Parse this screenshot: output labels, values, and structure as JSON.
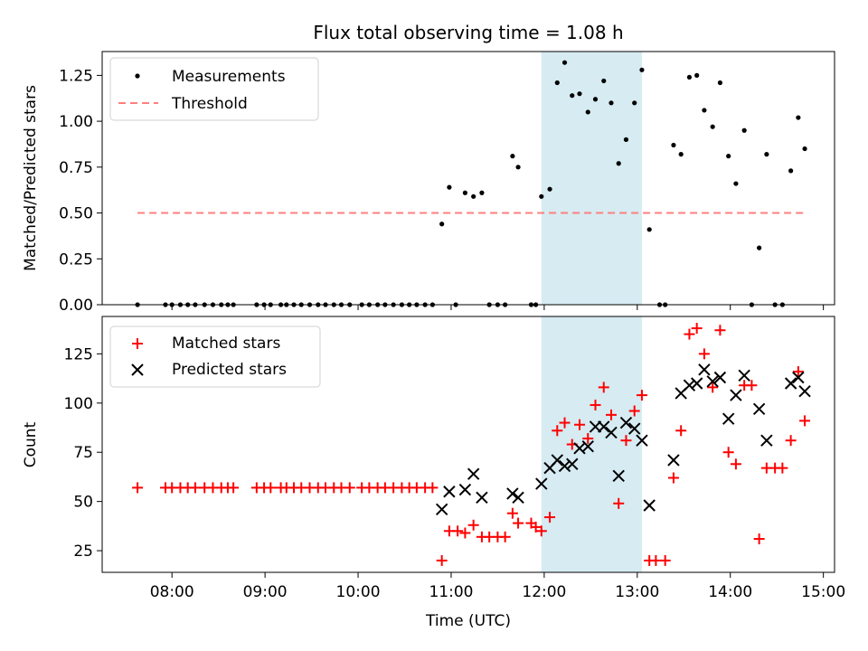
{
  "chart_data": {
    "type": "scatter",
    "title": "Flux total observing time = 1.08 h",
    "xlabel": "Time (UTC)",
    "x_unit": "hours since midnight UTC",
    "xlim": [
      7.25,
      15.12
    ],
    "x_ticks": [
      8,
      9,
      10,
      11,
      12,
      13,
      14,
      15
    ],
    "x_tick_labels": [
      "08:00",
      "09:00",
      "10:00",
      "11:00",
      "12:00",
      "13:00",
      "14:00",
      "15:00"
    ],
    "highlight_span": [
      11.97,
      13.05
    ],
    "highlight_color": "#add8e6",
    "panels": [
      {
        "id": "ratio",
        "ylabel": "Matched/Predicted stars",
        "ylim": [
          0.0,
          1.38
        ],
        "y_ticks": [
          0.0,
          0.25,
          0.5,
          0.75,
          1.0,
          1.25
        ],
        "y_tick_labels": [
          "0.00",
          "0.25",
          "0.50",
          "0.75",
          "1.00",
          "1.25"
        ],
        "legend": [
          "Measurements",
          "Threshold"
        ],
        "threshold": {
          "y": 0.5,
          "x_range": [
            7.63,
            14.8
          ],
          "color": "#ff7f7f"
        },
        "series": [
          {
            "name": "Measurements",
            "marker": "dot",
            "color": "#000000",
            "points": [
              [
                7.63,
                0.0
              ],
              [
                7.93,
                0.0
              ],
              [
                8.0,
                0.0
              ],
              [
                8.09,
                0.0
              ],
              [
                8.17,
                0.0
              ],
              [
                8.25,
                0.0
              ],
              [
                8.35,
                0.0
              ],
              [
                8.44,
                0.0
              ],
              [
                8.53,
                0.0
              ],
              [
                8.6,
                0.0
              ],
              [
                8.66,
                0.0
              ],
              [
                8.91,
                0.0
              ],
              [
                8.99,
                0.0
              ],
              [
                9.06,
                0.0
              ],
              [
                9.17,
                0.0
              ],
              [
                9.23,
                0.0
              ],
              [
                9.31,
                0.0
              ],
              [
                9.39,
                0.0
              ],
              [
                9.48,
                0.0
              ],
              [
                9.57,
                0.0
              ],
              [
                9.65,
                0.0
              ],
              [
                9.74,
                0.0
              ],
              [
                9.82,
                0.0
              ],
              [
                9.91,
                0.0
              ],
              [
                10.04,
                0.0
              ],
              [
                10.12,
                0.0
              ],
              [
                10.21,
                0.0
              ],
              [
                10.29,
                0.0
              ],
              [
                10.38,
                0.0
              ],
              [
                10.47,
                0.0
              ],
              [
                10.55,
                0.0
              ],
              [
                10.63,
                0.0
              ],
              [
                10.72,
                0.0
              ],
              [
                10.8,
                0.0
              ],
              [
                10.9,
                0.44
              ],
              [
                10.98,
                0.64
              ],
              [
                11.05,
                0.0
              ],
              [
                11.15,
                0.61
              ],
              [
                11.24,
                0.59
              ],
              [
                11.33,
                0.61
              ],
              [
                11.41,
                0.0
              ],
              [
                11.5,
                0.0
              ],
              [
                11.58,
                0.0
              ],
              [
                11.66,
                0.81
              ],
              [
                11.72,
                0.75
              ],
              [
                11.86,
                0.0
              ],
              [
                11.91,
                0.0
              ],
              [
                11.97,
                0.59
              ],
              [
                12.06,
                0.63
              ],
              [
                12.14,
                1.21
              ],
              [
                12.22,
                1.32
              ],
              [
                12.3,
                1.14
              ],
              [
                12.38,
                1.15
              ],
              [
                12.47,
                1.05
              ],
              [
                12.55,
                1.12
              ],
              [
                12.64,
                1.22
              ],
              [
                12.72,
                1.1
              ],
              [
                12.8,
                0.77
              ],
              [
                12.88,
                0.9
              ],
              [
                12.97,
                1.1
              ],
              [
                13.05,
                1.28
              ],
              [
                13.13,
                0.41
              ],
              [
                13.24,
                0.0
              ],
              [
                13.3,
                0.0
              ],
              [
                13.39,
                0.87
              ],
              [
                13.47,
                0.82
              ],
              [
                13.56,
                1.24
              ],
              [
                13.64,
                1.25
              ],
              [
                13.72,
                1.06
              ],
              [
                13.81,
                0.97
              ],
              [
                13.89,
                1.21
              ],
              [
                13.98,
                0.81
              ],
              [
                14.06,
                0.66
              ],
              [
                14.15,
                0.95
              ],
              [
                14.23,
                0.0
              ],
              [
                14.31,
                0.31
              ],
              [
                14.39,
                0.82
              ],
              [
                14.48,
                0.0
              ],
              [
                14.56,
                0.0
              ],
              [
                14.65,
                0.73
              ],
              [
                14.73,
                1.02
              ],
              [
                14.8,
                0.85
              ]
            ]
          }
        ]
      },
      {
        "id": "count",
        "ylabel": "Count",
        "ylim": [
          14.0,
          144.0
        ],
        "y_ticks": [
          25,
          50,
          75,
          100,
          125
        ],
        "y_tick_labels": [
          "25",
          "50",
          "75",
          "100",
          "125"
        ],
        "legend": [
          "Matched stars",
          "Predicted stars"
        ],
        "series": [
          {
            "name": "Matched stars",
            "marker": "plus",
            "color": "#ff0000",
            "points": [
              [
                7.63,
                57
              ],
              [
                7.93,
                57
              ],
              [
                8.0,
                57
              ],
              [
                8.09,
                57
              ],
              [
                8.17,
                57
              ],
              [
                8.25,
                57
              ],
              [
                8.35,
                57
              ],
              [
                8.44,
                57
              ],
              [
                8.53,
                57
              ],
              [
                8.6,
                57
              ],
              [
                8.66,
                57
              ],
              [
                8.91,
                57
              ],
              [
                8.99,
                57
              ],
              [
                9.06,
                57
              ],
              [
                9.17,
                57
              ],
              [
                9.23,
                57
              ],
              [
                9.31,
                57
              ],
              [
                9.39,
                57
              ],
              [
                9.48,
                57
              ],
              [
                9.57,
                57
              ],
              [
                9.65,
                57
              ],
              [
                9.74,
                57
              ],
              [
                9.82,
                57
              ],
              [
                9.91,
                57
              ],
              [
                10.04,
                57
              ],
              [
                10.12,
                57
              ],
              [
                10.21,
                57
              ],
              [
                10.29,
                57
              ],
              [
                10.38,
                57
              ],
              [
                10.47,
                57
              ],
              [
                10.55,
                57
              ],
              [
                10.63,
                57
              ],
              [
                10.72,
                57
              ],
              [
                10.8,
                57
              ],
              [
                10.9,
                20
              ],
              [
                10.98,
                35
              ],
              [
                11.07,
                35
              ],
              [
                11.15,
                34
              ],
              [
                11.24,
                38
              ],
              [
                11.33,
                32
              ],
              [
                11.41,
                32
              ],
              [
                11.5,
                32
              ],
              [
                11.58,
                32
              ],
              [
                11.66,
                44
              ],
              [
                11.72,
                39
              ],
              [
                11.86,
                39
              ],
              [
                11.91,
                37
              ],
              [
                11.97,
                35
              ],
              [
                12.06,
                42
              ],
              [
                12.14,
                86
              ],
              [
                12.22,
                90
              ],
              [
                12.3,
                79
              ],
              [
                12.38,
                89
              ],
              [
                12.47,
                82
              ],
              [
                12.55,
                99
              ],
              [
                12.64,
                108
              ],
              [
                12.72,
                94
              ],
              [
                12.8,
                49
              ],
              [
                12.88,
                81
              ],
              [
                12.97,
                96
              ],
              [
                13.05,
                104
              ],
              [
                13.13,
                20
              ],
              [
                13.2,
                20
              ],
              [
                13.3,
                20
              ],
              [
                13.39,
                62
              ],
              [
                13.47,
                86
              ],
              [
                13.56,
                135
              ],
              [
                13.64,
                138
              ],
              [
                13.72,
                125
              ],
              [
                13.81,
                108
              ],
              [
                13.89,
                137
              ],
              [
                13.98,
                75
              ],
              [
                14.06,
                69
              ],
              [
                14.15,
                109
              ],
              [
                14.23,
                109
              ],
              [
                14.31,
                31
              ],
              [
                14.39,
                67
              ],
              [
                14.48,
                67
              ],
              [
                14.56,
                67
              ],
              [
                14.65,
                81
              ],
              [
                14.73,
                116
              ],
              [
                14.8,
                91
              ]
            ]
          },
          {
            "name": "Predicted stars",
            "marker": "x",
            "color": "#000000",
            "points": [
              [
                10.9,
                46
              ],
              [
                10.98,
                55
              ],
              [
                11.15,
                56
              ],
              [
                11.24,
                64
              ],
              [
                11.33,
                52
              ],
              [
                11.66,
                54
              ],
              [
                11.72,
                52
              ],
              [
                11.97,
                59
              ],
              [
                12.06,
                67
              ],
              [
                12.14,
                71
              ],
              [
                12.22,
                68
              ],
              [
                12.3,
                69
              ],
              [
                12.38,
                77
              ],
              [
                12.47,
                78
              ],
              [
                12.55,
                88
              ],
              [
                12.64,
                88
              ],
              [
                12.72,
                85
              ],
              [
                12.8,
                63
              ],
              [
                12.88,
                90
              ],
              [
                12.97,
                87
              ],
              [
                13.05,
                81
              ],
              [
                13.13,
                48
              ],
              [
                13.39,
                71
              ],
              [
                13.47,
                105
              ],
              [
                13.56,
                109
              ],
              [
                13.64,
                110
              ],
              [
                13.72,
                117
              ],
              [
                13.81,
                111
              ],
              [
                13.89,
                113
              ],
              [
                13.98,
                92
              ],
              [
                14.06,
                104
              ],
              [
                14.15,
                114
              ],
              [
                14.31,
                97
              ],
              [
                14.39,
                81
              ],
              [
                14.65,
                110
              ],
              [
                14.73,
                113
              ],
              [
                14.8,
                106
              ]
            ]
          }
        ]
      }
    ]
  }
}
